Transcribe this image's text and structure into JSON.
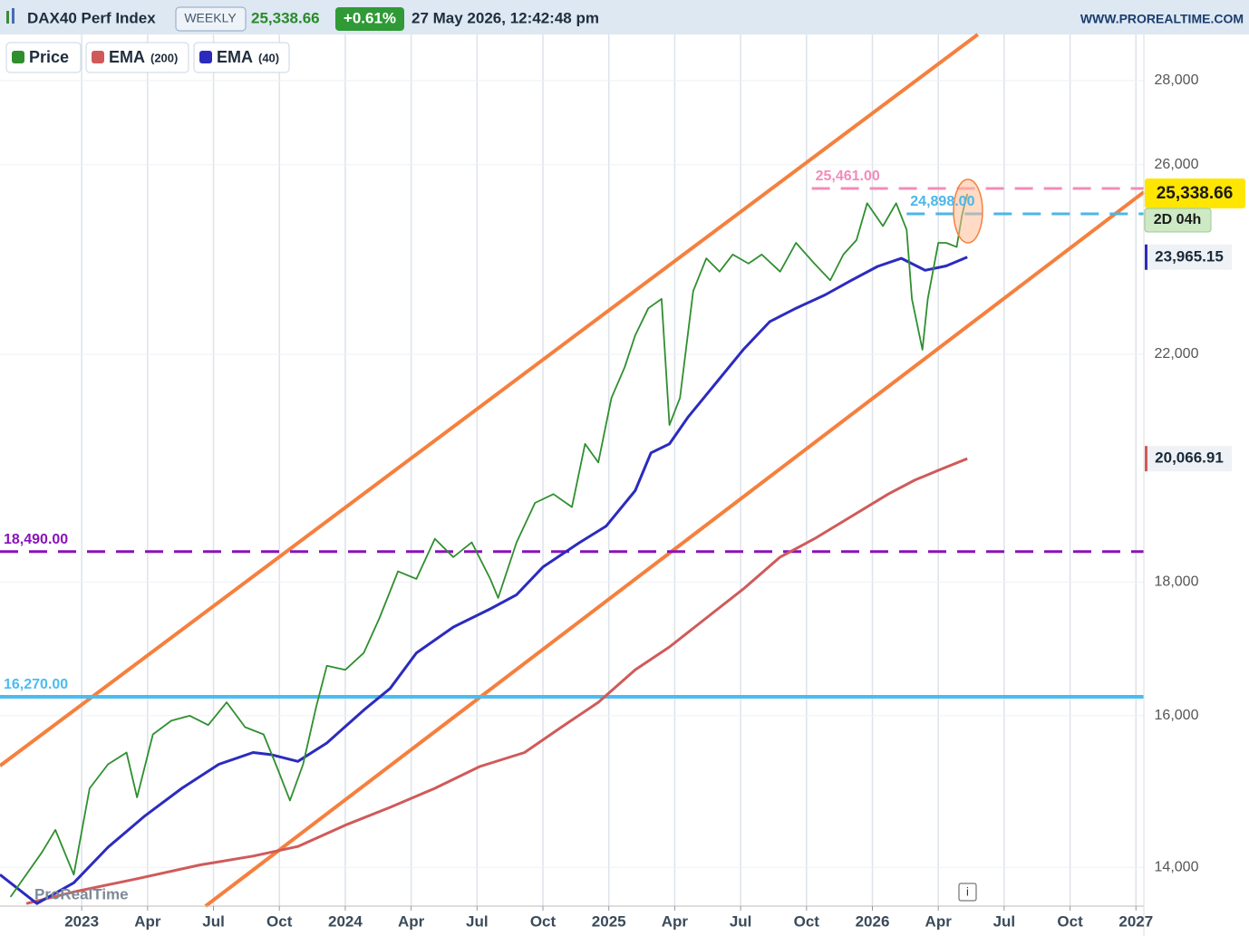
{
  "header": {
    "title": "DAX40 Perf Index",
    "timeframe": "WEEKLY",
    "price": "25,338.66",
    "change": "+0.61%",
    "datetime": "27 May 2026, 12:42:48 pm",
    "site": "WWW.PROREALTIME.COM"
  },
  "chart_data": {
    "type": "line",
    "log_scale": true,
    "grid": true,
    "watermark": "ProRealTime",
    "info": "i",
    "xlim": [
      2022.69,
      2027.03
    ],
    "ylim": [
      13530,
      29160
    ],
    "xticks": [
      {
        "value": 2023,
        "label": "2023"
      },
      {
        "value": 2023.25,
        "label": "Apr"
      },
      {
        "value": 2023.5,
        "label": "Jul"
      },
      {
        "value": 2023.75,
        "label": "Oct"
      },
      {
        "value": 2024,
        "label": "2024"
      },
      {
        "value": 2024.25,
        "label": "Apr"
      },
      {
        "value": 2024.5,
        "label": "Jul"
      },
      {
        "value": 2024.75,
        "label": "Oct"
      },
      {
        "value": 2025,
        "label": "2025"
      },
      {
        "value": 2025.25,
        "label": "Apr"
      },
      {
        "value": 2025.5,
        "label": "Jul"
      },
      {
        "value": 2025.75,
        "label": "Oct"
      },
      {
        "value": 2026,
        "label": "2026"
      },
      {
        "value": 2026.25,
        "label": "Apr"
      },
      {
        "value": 2026.5,
        "label": "Jul"
      },
      {
        "value": 2026.75,
        "label": "Oct"
      },
      {
        "value": 2027,
        "label": "2027"
      }
    ],
    "yticks": [
      {
        "value": 14000,
        "label": "14,000"
      },
      {
        "value": 16000,
        "label": "16,000"
      },
      {
        "value": 18000,
        "label": "18,000"
      },
      {
        "value": 22000,
        "label": "22,000"
      },
      {
        "value": 26000,
        "label": "26,000"
      },
      {
        "value": 28000,
        "label": "28,000"
      }
    ],
    "countdown": "2D 04h",
    "series": [
      {
        "name": "Price",
        "color": "#2f8f2f",
        "label_color": "#ffe600",
        "x": [
          2022.73,
          2022.85,
          2022.9,
          2022.97,
          2023.03,
          2023.1,
          2023.17,
          2023.21,
          2023.27,
          2023.34,
          2023.41,
          2023.48,
          2023.55,
          2023.62,
          2023.69,
          2023.74,
          2023.79,
          2023.84,
          2023.89,
          2023.93,
          2024.0,
          2024.07,
          2024.13,
          2024.2,
          2024.27,
          2024.34,
          2024.41,
          2024.48,
          2024.55,
          2024.58,
          2024.65,
          2024.72,
          2024.79,
          2024.86,
          2024.91,
          2024.96,
          2025.01,
          2025.06,
          2025.1,
          2025.15,
          2025.2,
          2025.23,
          2025.27,
          2025.32,
          2025.37,
          2025.42,
          2025.47,
          2025.53,
          2025.58,
          2025.65,
          2025.71,
          2025.78,
          2025.84,
          2025.89,
          2025.94,
          2025.98,
          2026.04,
          2026.09,
          2026.13,
          2026.15,
          2026.19,
          2026.21,
          2026.25,
          2026.28,
          2026.32,
          2026.34,
          2026.36
        ],
        "values": [
          13640,
          14190,
          14470,
          13910,
          15010,
          15330,
          15490,
          14890,
          15740,
          15930,
          16000,
          15870,
          16190,
          15840,
          15740,
          15300,
          14850,
          15330,
          16130,
          16720,
          16660,
          16910,
          17440,
          18170,
          18050,
          18700,
          18400,
          18640,
          18050,
          17750,
          18640,
          19300,
          19450,
          19230,
          20330,
          20000,
          21170,
          21750,
          22370,
          22910,
          23100,
          20670,
          21170,
          23260,
          23940,
          23660,
          24020,
          23830,
          24020,
          23660,
          24270,
          23830,
          23480,
          24020,
          24330,
          25130,
          24630,
          25130,
          24550,
          23100,
          22090,
          23100,
          24270,
          24270,
          24180,
          24870,
          25338.66
        ],
        "value_label": "25,338.66"
      },
      {
        "name": "EMA",
        "param": "(200)",
        "color": "#d05a5a",
        "x": [
          2022.79,
          2022.97,
          2023.21,
          2023.45,
          2023.65,
          2023.82,
          2024.0,
          2024.17,
          2024.34,
          2024.51,
          2024.68,
          2024.82,
          2024.96,
          2025.1,
          2025.23,
          2025.37,
          2025.51,
          2025.65,
          2025.78,
          2025.92,
          2026.06,
          2026.16,
          2026.26,
          2026.36
        ],
        "values": [
          13560,
          13700,
          13860,
          14030,
          14140,
          14260,
          14530,
          14760,
          15010,
          15300,
          15490,
          15840,
          16190,
          16660,
          17000,
          17440,
          17890,
          18400,
          18700,
          19070,
          19450,
          19690,
          19880,
          20066.91
        ],
        "value_label": "20,066.91"
      },
      {
        "name": "EMA",
        "param": "(40)",
        "color": "#2b2bbf",
        "x": [
          2022.69,
          2022.83,
          2022.97,
          2023.1,
          2023.24,
          2023.38,
          2023.52,
          2023.65,
          2023.72,
          2023.82,
          2023.93,
          2024.07,
          2024.17,
          2024.27,
          2024.41,
          2024.55,
          2024.65,
          2024.75,
          2024.89,
          2024.99,
          2025.1,
          2025.16,
          2025.23,
          2025.3,
          2025.41,
          2025.51,
          2025.61,
          2025.71,
          2025.82,
          2025.92,
          2026.02,
          2026.11,
          2026.2,
          2026.28,
          2026.36
        ],
        "values": [
          13910,
          13560,
          13810,
          14250,
          14650,
          15010,
          15330,
          15490,
          15460,
          15370,
          15620,
          16080,
          16390,
          16910,
          17300,
          17580,
          17800,
          18240,
          18640,
          18910,
          19510,
          20170,
          20330,
          20810,
          21470,
          22090,
          22640,
          22910,
          23180,
          23480,
          23770,
          23940,
          23690,
          23780,
          23965.15
        ],
        "value_label": "23,965.15"
      }
    ],
    "levels": [
      {
        "value": 18490,
        "label": "18,490.00",
        "color": "#8a12b8",
        "dashed": true,
        "from": 2022.69
      },
      {
        "value": 16270,
        "label": "16,270.00",
        "color": "#4bbcf0",
        "dashed": false,
        "from": 2022.69
      },
      {
        "value": 25461,
        "label": "25,461.00",
        "color": "#f28cba",
        "dashed": true,
        "from": 2025.77
      },
      {
        "value": 24898,
        "label": "24,898.00",
        "color": "#4bb6ea",
        "dashed": true,
        "from": 2026.13
      }
    ],
    "trendlines": [
      {
        "x": [
          2022.69,
          2026.4
        ],
        "values": [
          15310,
          29160
        ],
        "color": "#f5803e"
      },
      {
        "x": [
          2023.47,
          2027.03
        ],
        "values": [
          13530,
          25380
        ],
        "color": "#f5803e"
      }
    ]
  }
}
